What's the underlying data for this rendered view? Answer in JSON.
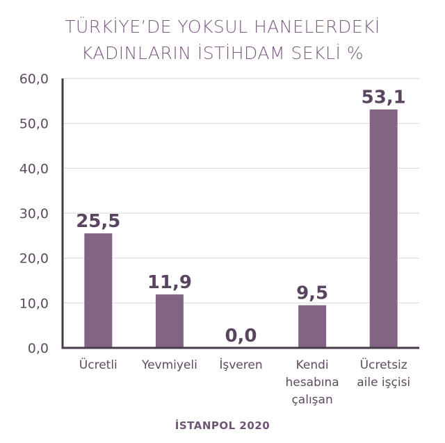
{
  "chart_data": {
    "type": "bar",
    "title_lines": [
      "TÜRKİYE’DE YOKSUL HANELERDEKİ",
      "KADINLARIN İSTİHDAM SEKLİ %"
    ],
    "categories": [
      [
        "Ücretli"
      ],
      [
        "Yevmiyeli"
      ],
      [
        "İşveren"
      ],
      [
        "Kendi",
        "hesabına",
        "çalışan"
      ],
      [
        "Ücretsiz",
        "aile  işçisi"
      ]
    ],
    "values": [
      25.5,
      11.9,
      0.0,
      9.5,
      53.1
    ],
    "data_labels": [
      "25,5",
      "11,9",
      "0,0",
      "9,5",
      "53,1"
    ],
    "yticks": [
      {
        "value": 0,
        "label": "0,0"
      },
      {
        "value": 10,
        "label": "10,0"
      },
      {
        "value": 20,
        "label": "20,0"
      },
      {
        "value": 30,
        "label": "30,0"
      },
      {
        "value": 40,
        "label": "40,0"
      },
      {
        "value": 50,
        "label": "50,0"
      },
      {
        "value": 60,
        "label": "60,0"
      }
    ],
    "ylim": [
      0,
      60
    ],
    "grid": true,
    "bar_color": "#826584",
    "axis_color": "#4a3b4c",
    "grid_color": "#dcdcdc",
    "xlabel": "",
    "ylabel": ""
  },
  "source": "İSTANPOL 2020"
}
